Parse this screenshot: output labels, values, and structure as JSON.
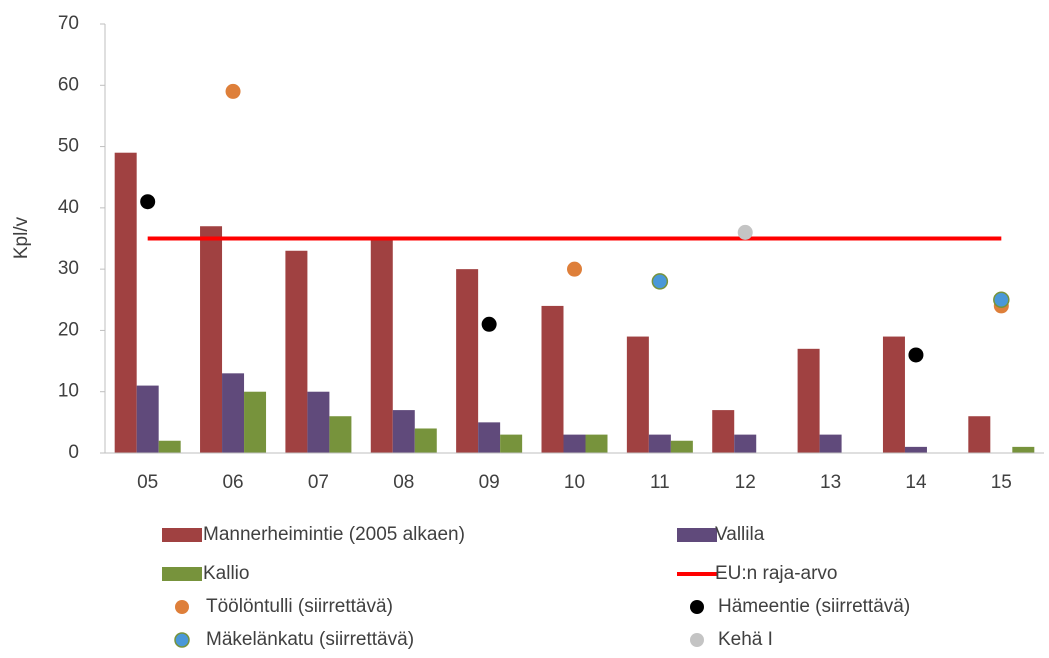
{
  "chart_data": {
    "type": "bar",
    "ylabel": "Kpl/v",
    "categories": [
      "05",
      "06",
      "07",
      "08",
      "09",
      "10",
      "11",
      "12",
      "13",
      "14",
      "15"
    ],
    "ylim": [
      0,
      70
    ],
    "yticks": [
      0,
      10,
      20,
      30,
      40,
      50,
      60,
      70
    ],
    "grid": false,
    "series": [
      {
        "name": "Mannerheimintie (2005 alkaen)",
        "kind": "bar",
        "color": "#a04141",
        "values": [
          49,
          37,
          33,
          35,
          30,
          24,
          19,
          7,
          17,
          19,
          6
        ]
      },
      {
        "name": "Vallila",
        "kind": "bar",
        "color": "#604a7b",
        "values": [
          11,
          13,
          10,
          7,
          5,
          3,
          3,
          3,
          3,
          1,
          0
        ]
      },
      {
        "name": "Kallio",
        "kind": "bar",
        "color": "#77933c",
        "values": [
          2,
          10,
          6,
          4,
          3,
          3,
          2,
          0,
          0,
          0,
          1
        ]
      },
      {
        "name": "EU:n raja-arvo",
        "kind": "line",
        "color": "#ff0000",
        "values": [
          35,
          35,
          35,
          35,
          35,
          35,
          35,
          35,
          35,
          35,
          35
        ]
      },
      {
        "name": "Töölöntulli  (siirrettävä)",
        "kind": "scatter",
        "color": "#de7f3a",
        "values": [
          null,
          59,
          null,
          null,
          null,
          30,
          null,
          null,
          null,
          null,
          24
        ]
      },
      {
        "name": "Hämeentie  (siirrettävä)",
        "kind": "scatter",
        "color": "#000000",
        "values": [
          41,
          null,
          null,
          null,
          21,
          null,
          null,
          null,
          null,
          16,
          null
        ]
      },
      {
        "name": "Mäkelänkatu (siirrettävä)",
        "kind": "scatter",
        "color": "#4a98d8",
        "values": [
          null,
          null,
          null,
          null,
          null,
          null,
          28,
          null,
          null,
          null,
          25
        ]
      },
      {
        "name": "Kehä I",
        "kind": "scatter",
        "color": "#c4c4c4",
        "values": [
          null,
          null,
          null,
          null,
          null,
          null,
          null,
          36,
          null,
          null,
          null
        ]
      }
    ]
  }
}
